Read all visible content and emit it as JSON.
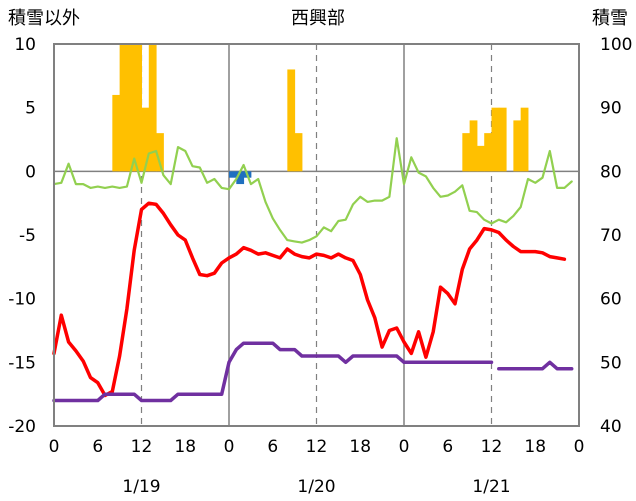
{
  "chart_data": {
    "type": "bar+line",
    "title": "西興部",
    "ylabel_left": "積雪以外",
    "ylabel_right": "積雪",
    "ylim_left": [
      -20,
      10
    ],
    "ylim_right": [
      40,
      100
    ],
    "yticks_left": [
      "10",
      "5",
      "0",
      "-5",
      "-10",
      "-15",
      "-20"
    ],
    "yticks_right": [
      "100",
      "90",
      "80",
      "70",
      "60",
      "50",
      "40"
    ],
    "xlim_hours": [
      0,
      72
    ],
    "xticks_hour_labels": [
      "0",
      "6",
      "12",
      "18",
      "0",
      "6",
      "12",
      "18",
      "0",
      "6",
      "12",
      "18",
      "0"
    ],
    "date_labels": [
      "1/19",
      "1/20",
      "1/21"
    ],
    "grid": "dashed vertical lines at 12h, solid at day boundaries",
    "colors": {
      "precipitation": "#ffc000",
      "negative_bar": "#1f6fbf",
      "temperature": "#ff0000",
      "wind": "#92d050",
      "snow_depth": "#7030a0"
    },
    "series": [
      {
        "kind": "bar",
        "axis": "left",
        "values": [
          [
            8,
            6
          ],
          [
            9,
            10
          ],
          [
            10,
            10
          ],
          [
            11,
            10
          ],
          [
            12,
            5
          ],
          [
            13,
            10
          ],
          [
            14,
            3
          ],
          [
            32,
            8
          ],
          [
            33,
            3
          ],
          [
            56,
            3
          ],
          [
            57,
            4
          ],
          [
            58,
            2
          ],
          [
            59,
            3
          ],
          [
            60,
            5
          ],
          [
            61,
            5
          ],
          [
            63,
            4
          ],
          [
            64,
            5
          ]
        ]
      },
      {
        "kind": "bar",
        "axis": "left",
        "values": [
          [
            24,
            -0.5
          ],
          [
            25,
            -1.0
          ],
          [
            26,
            -0.5
          ]
        ]
      },
      {
        "kind": "line",
        "axis": "left",
        "values": [
          [
            0,
            -14.3
          ],
          [
            1,
            -11.3
          ],
          [
            2,
            -13.4
          ],
          [
            3,
            -14.1
          ],
          [
            4,
            -14.9
          ],
          [
            5,
            -16.2
          ],
          [
            6,
            -16.6
          ],
          [
            7,
            -17.6
          ],
          [
            8,
            -17.3
          ],
          [
            9,
            -14.5
          ],
          [
            10,
            -10.8
          ],
          [
            11,
            -6.2
          ],
          [
            12,
            -3.0
          ],
          [
            13,
            -2.5
          ],
          [
            14,
            -2.6
          ],
          [
            15,
            -3.3
          ],
          [
            16,
            -4.2
          ],
          [
            17,
            -5.0
          ],
          [
            18,
            -5.4
          ],
          [
            19,
            -6.8
          ],
          [
            20,
            -8.1
          ],
          [
            21,
            -8.2
          ],
          [
            22,
            -8.0
          ],
          [
            23,
            -7.2
          ],
          [
            24,
            -6.8
          ],
          [
            25,
            -6.5
          ],
          [
            26,
            -6.0
          ],
          [
            27,
            -6.2
          ],
          [
            28,
            -6.5
          ],
          [
            29,
            -6.4
          ],
          [
            30,
            -6.6
          ],
          [
            31,
            -6.8
          ],
          [
            32,
            -6.1
          ],
          [
            33,
            -6.5
          ],
          [
            34,
            -6.7
          ],
          [
            35,
            -6.8
          ],
          [
            36,
            -6.5
          ],
          [
            37,
            -6.6
          ],
          [
            38,
            -6.8
          ],
          [
            39,
            -6.5
          ],
          [
            40,
            -6.8
          ],
          [
            41,
            -7.0
          ],
          [
            42,
            -8.1
          ],
          [
            43,
            -10.1
          ],
          [
            44,
            -11.5
          ],
          [
            45,
            -13.8
          ],
          [
            46,
            -12.5
          ],
          [
            47,
            -12.3
          ],
          [
            48,
            -13.4
          ],
          [
            49,
            -14.3
          ],
          [
            50,
            -12.6
          ],
          [
            51,
            -14.6
          ],
          [
            52,
            -12.6
          ],
          [
            53,
            -9.1
          ],
          [
            54,
            -9.6
          ],
          [
            55,
            -10.4
          ],
          [
            56,
            -7.7
          ],
          [
            57,
            -6.1
          ],
          [
            58,
            -5.4
          ],
          [
            59,
            -4.5
          ],
          [
            60,
            -4.6
          ],
          [
            61,
            -4.8
          ],
          [
            62,
            -5.4
          ],
          [
            63,
            -5.9
          ],
          [
            64,
            -6.3
          ],
          [
            65,
            -6.3
          ],
          [
            66,
            -6.3
          ],
          [
            67,
            -6.4
          ],
          [
            68,
            -6.7
          ],
          [
            69,
            -6.8
          ],
          [
            70,
            -6.9
          ]
        ]
      },
      {
        "kind": "line",
        "axis": "left",
        "values": [
          [
            0,
            -1.0
          ],
          [
            1,
            -0.9
          ],
          [
            2,
            0.6
          ],
          [
            3,
            -1.0
          ],
          [
            4,
            -1.0
          ],
          [
            5,
            -1.3
          ],
          [
            6,
            -1.2
          ],
          [
            7,
            -1.3
          ],
          [
            8,
            -1.2
          ],
          [
            9,
            -1.3
          ],
          [
            10,
            -1.2
          ],
          [
            11,
            1.0
          ],
          [
            12,
            -0.9
          ],
          [
            13,
            1.4
          ],
          [
            14,
            1.6
          ],
          [
            15,
            -0.3
          ],
          [
            16,
            -1.0
          ],
          [
            17,
            1.9
          ],
          [
            18,
            1.6
          ],
          [
            19,
            0.4
          ],
          [
            20,
            0.3
          ],
          [
            21,
            -0.9
          ],
          [
            22,
            -0.6
          ],
          [
            23,
            -1.3
          ],
          [
            24,
            -1.4
          ],
          [
            25,
            -0.6
          ],
          [
            26,
            0.5
          ],
          [
            27,
            -1.0
          ],
          [
            28,
            -0.6
          ],
          [
            29,
            -2.4
          ],
          [
            30,
            -3.7
          ],
          [
            31,
            -4.6
          ],
          [
            32,
            -5.4
          ],
          [
            33,
            -5.5
          ],
          [
            34,
            -5.6
          ],
          [
            35,
            -5.4
          ],
          [
            36,
            -5.1
          ],
          [
            37,
            -4.4
          ],
          [
            38,
            -4.7
          ],
          [
            39,
            -3.9
          ],
          [
            40,
            -3.8
          ],
          [
            41,
            -2.6
          ],
          [
            42,
            -2.0
          ],
          [
            43,
            -2.4
          ],
          [
            44,
            -2.3
          ],
          [
            45,
            -2.3
          ],
          [
            46,
            -2.0
          ],
          [
            47,
            2.6
          ],
          [
            48,
            -1.0
          ],
          [
            49,
            1.1
          ],
          [
            50,
            -0.1
          ],
          [
            51,
            -0.4
          ],
          [
            52,
            -1.3
          ],
          [
            53,
            -2.0
          ],
          [
            54,
            -1.9
          ],
          [
            55,
            -1.6
          ],
          [
            56,
            -1.1
          ],
          [
            57,
            -3.1
          ],
          [
            58,
            -3.2
          ],
          [
            59,
            -3.8
          ],
          [
            60,
            -4.1
          ],
          [
            61,
            -3.8
          ],
          [
            62,
            -4.0
          ],
          [
            63,
            -3.5
          ],
          [
            64,
            -2.8
          ],
          [
            65,
            -0.6
          ],
          [
            66,
            -0.9
          ],
          [
            67,
            -0.5
          ],
          [
            68,
            1.6
          ],
          [
            69,
            -1.3
          ],
          [
            70,
            -1.3
          ],
          [
            71,
            -0.8
          ]
        ]
      },
      {
        "kind": "line",
        "axis": "right",
        "values": [
          [
            0,
            44
          ],
          [
            1,
            44
          ],
          [
            2,
            44
          ],
          [
            3,
            44
          ],
          [
            4,
            44
          ],
          [
            5,
            44
          ],
          [
            6,
            44
          ],
          [
            7,
            45
          ],
          [
            8,
            45
          ],
          [
            9,
            45
          ],
          [
            10,
            45
          ],
          [
            11,
            45
          ],
          [
            12,
            44
          ],
          [
            13,
            44
          ],
          [
            14,
            44
          ],
          [
            15,
            44
          ],
          [
            16,
            44
          ],
          [
            17,
            45
          ],
          [
            18,
            45
          ],
          [
            19,
            45
          ],
          [
            20,
            45
          ],
          [
            21,
            45
          ],
          [
            22,
            45
          ],
          [
            23,
            45
          ],
          [
            24,
            50
          ],
          [
            25,
            52
          ],
          [
            26,
            53
          ],
          [
            27,
            53
          ],
          [
            28,
            53
          ],
          [
            29,
            53
          ],
          [
            30,
            53
          ],
          [
            31,
            52
          ],
          [
            32,
            52
          ],
          [
            33,
            52
          ],
          [
            34,
            51
          ],
          [
            35,
            51
          ],
          [
            36,
            51
          ],
          [
            37,
            51
          ],
          [
            38,
            51
          ],
          [
            39,
            51
          ],
          [
            40,
            50
          ],
          [
            41,
            51
          ],
          [
            42,
            51
          ],
          [
            43,
            51
          ],
          [
            44,
            51
          ],
          [
            45,
            51
          ],
          [
            46,
            51
          ],
          [
            47,
            51
          ],
          [
            48,
            50
          ],
          [
            49,
            50
          ],
          [
            50,
            50
          ],
          [
            51,
            50
          ],
          [
            52,
            50
          ],
          [
            53,
            50
          ],
          [
            54,
            50
          ],
          [
            55,
            50
          ],
          [
            56,
            50
          ],
          [
            57,
            50
          ],
          [
            58,
            50
          ],
          [
            59,
            50
          ],
          [
            60,
            50
          ],
          null,
          [
            61,
            49
          ],
          [
            62,
            49
          ],
          [
            63,
            49
          ],
          [
            64,
            49
          ],
          [
            65,
            49
          ],
          [
            66,
            49
          ],
          [
            67,
            49
          ],
          [
            68,
            50
          ],
          [
            69,
            49
          ],
          [
            70,
            49
          ],
          [
            71,
            49
          ]
        ]
      }
    ]
  }
}
